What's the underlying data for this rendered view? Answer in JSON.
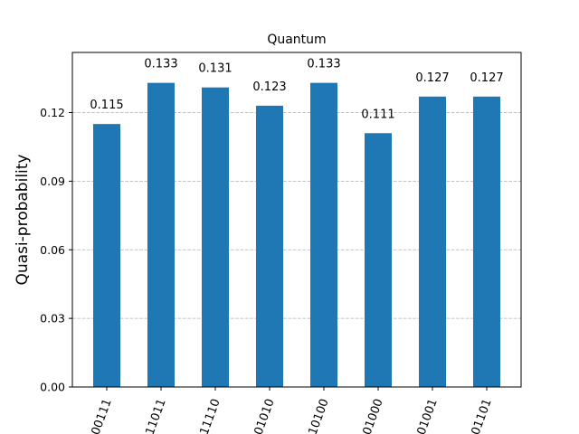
{
  "chart_data": {
    "type": "bar",
    "title": "Quantum",
    "xlabel": "",
    "ylabel": "Quasi-probability",
    "categories": [
      "00111",
      "11011",
      "11110",
      "01010",
      "10100",
      "01000",
      "01001",
      "01101"
    ],
    "values": [
      0.115,
      0.133,
      0.131,
      0.123,
      0.133,
      0.111,
      0.127,
      0.127
    ],
    "value_labels": [
      "0.115",
      "0.133",
      "0.131",
      "0.123",
      "0.133",
      "0.111",
      "0.127",
      "0.127"
    ],
    "ylim": [
      0,
      0.1463
    ],
    "yticks": [
      0.0,
      0.03,
      0.06,
      0.09,
      0.12
    ],
    "ytick_labels": [
      "0.00",
      "0.03",
      "0.06",
      "0.09",
      "0.12"
    ],
    "grid": "horizontal dashed",
    "bar_color": "#1f77b4",
    "grid_color": "#b0b0b0"
  }
}
